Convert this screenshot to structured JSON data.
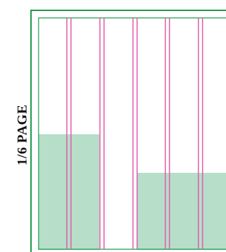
{
  "page_label": "1/6 PAGE",
  "colors": {
    "frame": "#1a9a4a",
    "column_guide": "#e05aa8",
    "ad_block": "#b6dec9",
    "ad_block_edge": "#8cc6a6"
  }
}
